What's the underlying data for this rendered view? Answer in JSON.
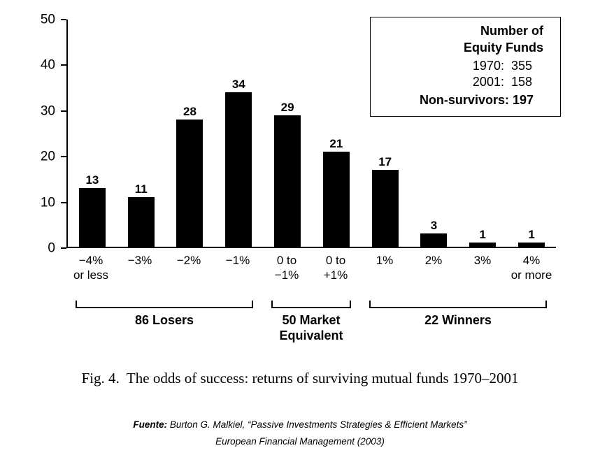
{
  "chart_data": {
    "type": "bar",
    "title": "",
    "categories": [
      "−4% or less",
      "−3%",
      "−2%",
      "−1%",
      "0 to −1%",
      "0 to +1%",
      "1%",
      "2%",
      "3%",
      "4% or more"
    ],
    "values": [
      13,
      11,
      28,
      34,
      29,
      21,
      17,
      3,
      1,
      1
    ],
    "xlabel": "",
    "ylabel": "",
    "ylim": [
      0,
      50
    ],
    "ytick_step": 10,
    "grid": false,
    "bar_color": "#000000",
    "legend_position": "top-right",
    "xtick_label_lines": [
      [
        "−4%",
        "or less"
      ],
      [
        "−3%",
        ""
      ],
      [
        "−2%",
        ""
      ],
      [
        "−1%",
        ""
      ],
      [
        "0 to",
        "−1%"
      ],
      [
        "0 to",
        "+1%"
      ],
      [
        "1%",
        ""
      ],
      [
        "2%",
        ""
      ],
      [
        "3%",
        ""
      ],
      [
        "4%",
        "or more"
      ]
    ],
    "groups": [
      {
        "label_lines": [
          "86 Losers"
        ],
        "span": 4
      },
      {
        "label_lines": [
          "50 Market",
          "Equivalent"
        ],
        "span": 2
      },
      {
        "label_lines": [
          "22 Winners"
        ],
        "span": 4
      }
    ]
  },
  "legend_box": {
    "title_lines": [
      "Number of",
      "Equity Funds"
    ],
    "rows": [
      {
        "label": "1970:",
        "value": "355"
      },
      {
        "label": "2001:",
        "value": "158"
      }
    ],
    "non_survivors": "Non-survivors: 197"
  },
  "caption": "Fig. 4.  The odds of success: returns of surviving mutual funds 1970–2001",
  "source": {
    "prefix": "Fuente:",
    "rest": " Burton G. Malkiel, “Passive Investments Strategies & Efficient Markets”",
    "line2": "European Financial Management (2003)"
  }
}
